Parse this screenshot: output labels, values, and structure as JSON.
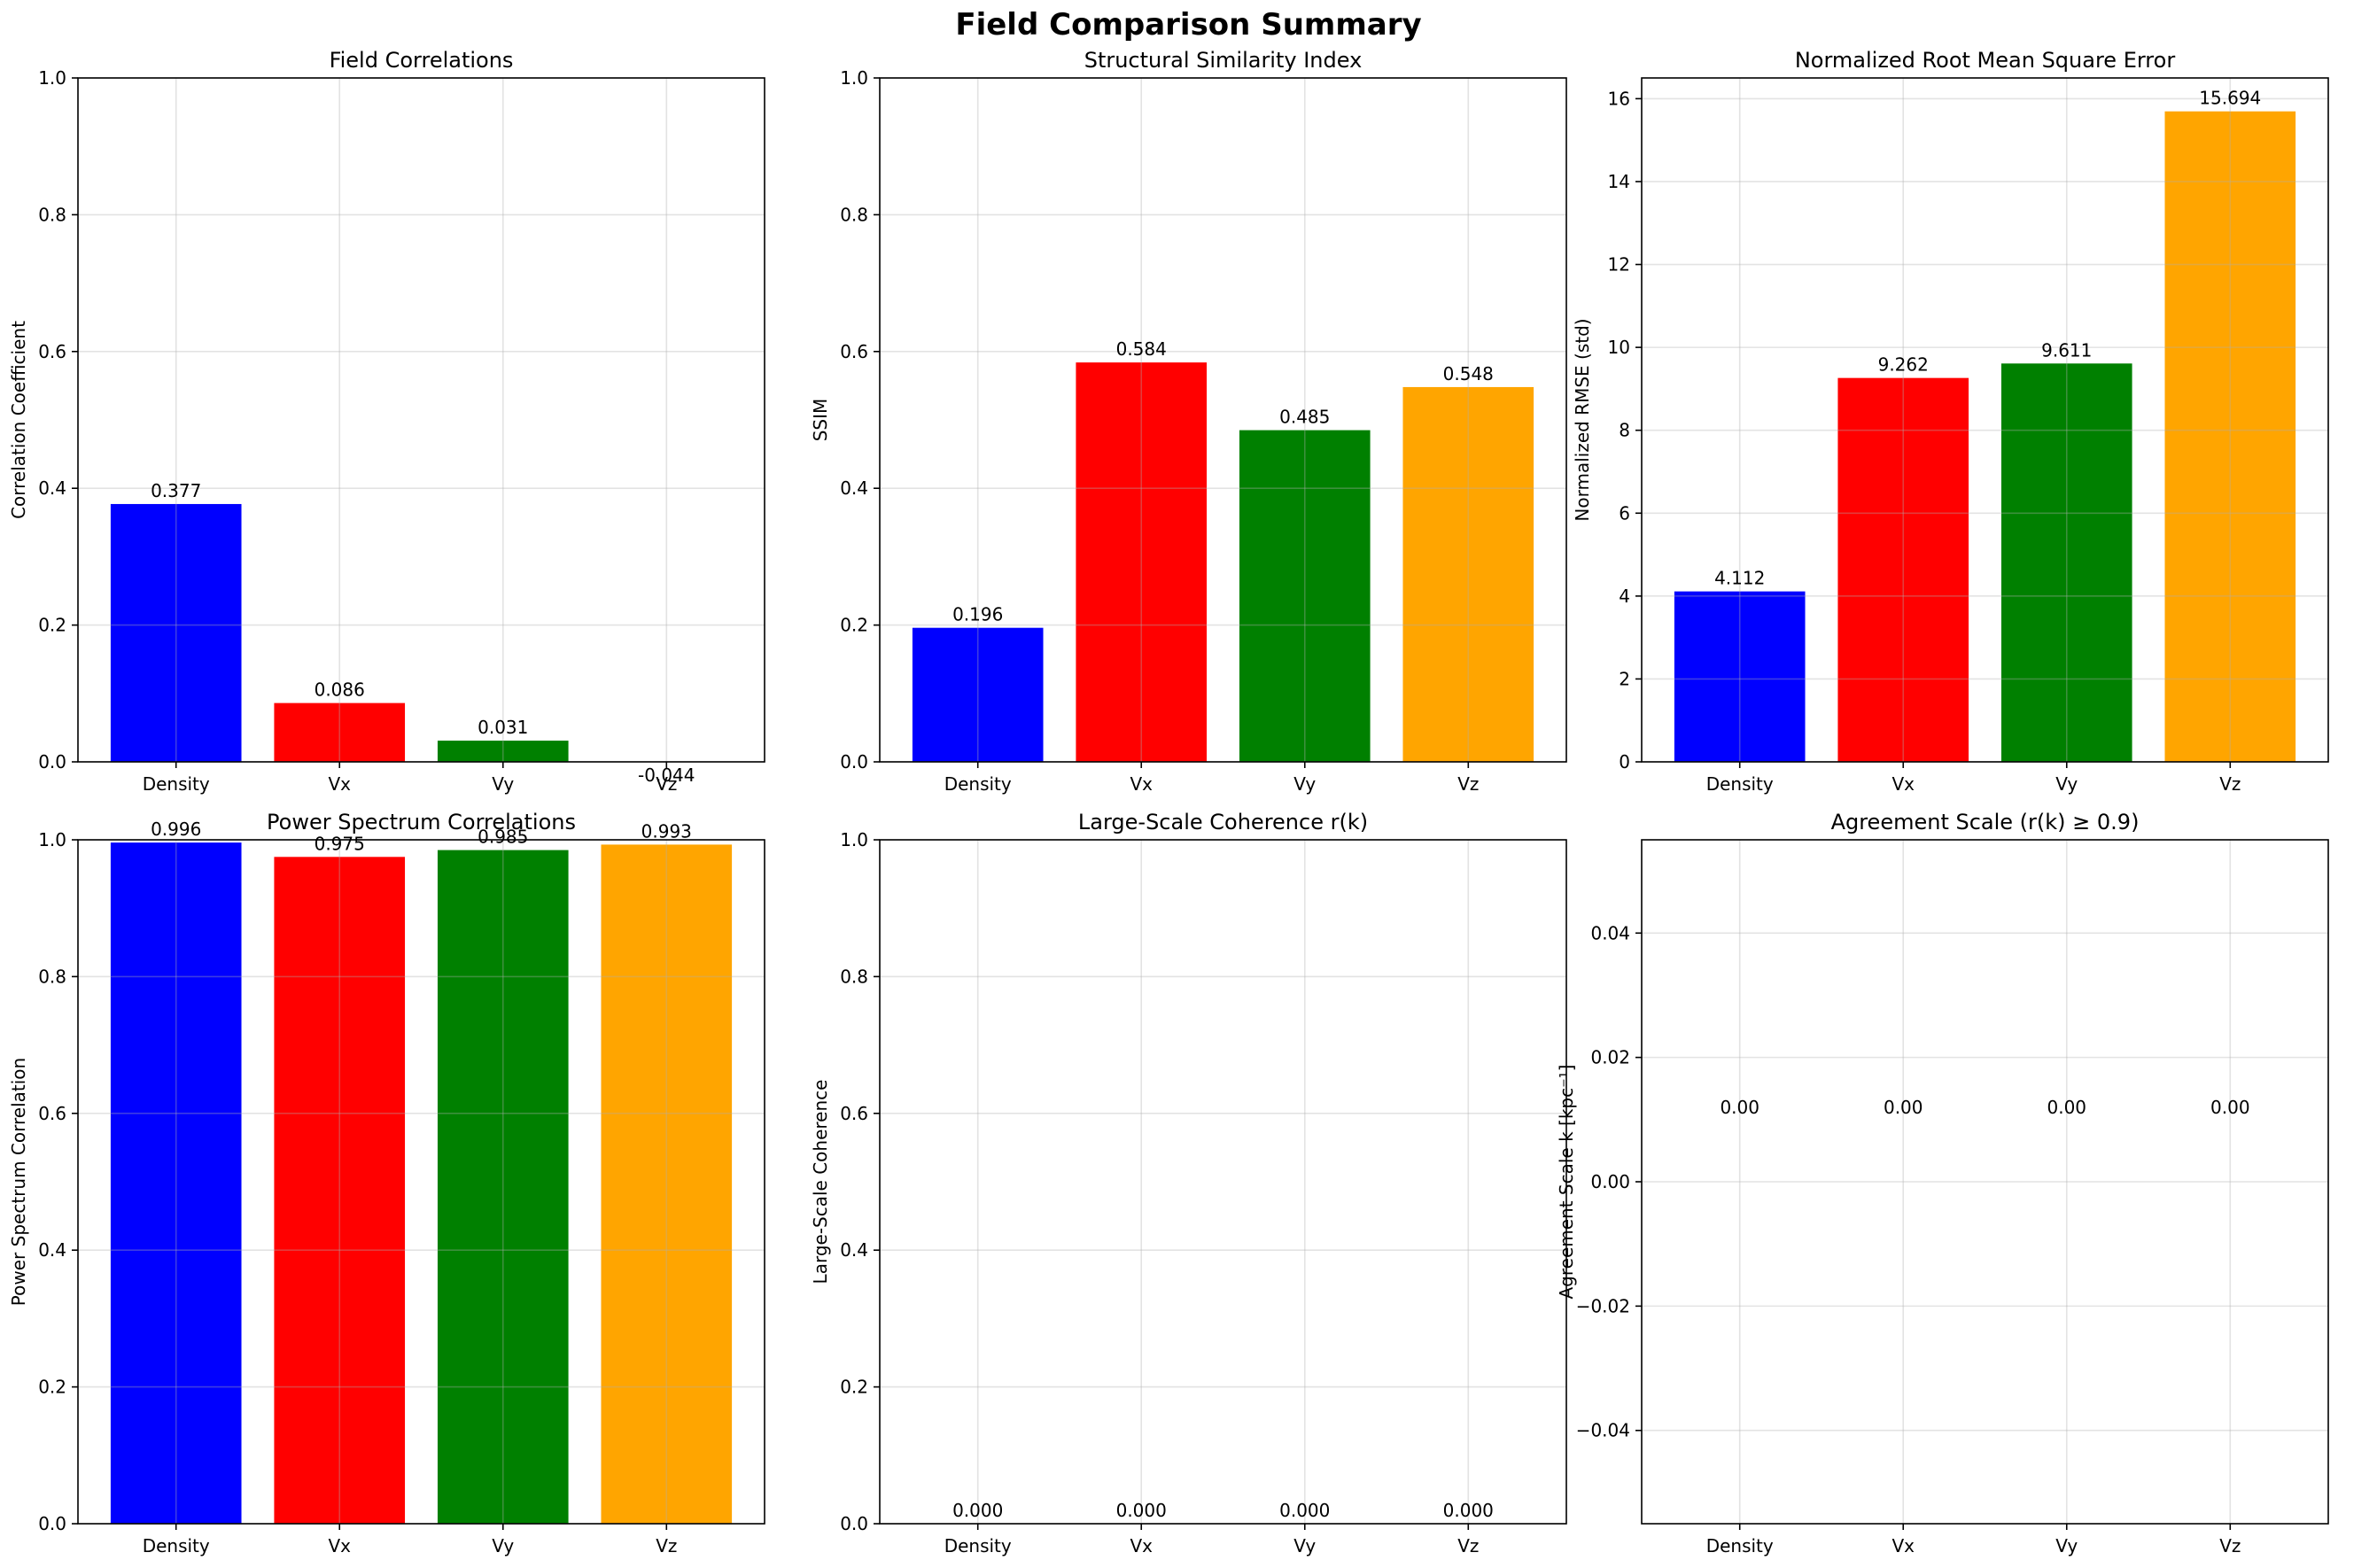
{
  "suptitle": "Field Comparison Summary",
  "colors": {
    "Density": "#0000ff",
    "Vx": "#ff0000",
    "Vy": "#008000",
    "Vz": "#ffa500"
  },
  "chart_data": [
    {
      "type": "bar",
      "title": "Field Correlations",
      "xlabel": "",
      "ylabel": "Correlation Coefficient",
      "categories": [
        "Density",
        "Vx",
        "Vy",
        "Vz"
      ],
      "values": [
        0.377,
        0.086,
        0.031,
        -0.044
      ],
      "labels": [
        "0.377",
        "0.086",
        "0.031",
        "-0.044"
      ],
      "ylim": [
        0,
        1.0
      ],
      "yticks": [
        0.0,
        0.2,
        0.4,
        0.6,
        0.8,
        1.0
      ],
      "ytick_labels": [
        "0.0",
        "0.2",
        "0.4",
        "0.6",
        "0.8",
        "1.0"
      ],
      "grid": true
    },
    {
      "type": "bar",
      "title": "Structural Similarity Index",
      "xlabel": "",
      "ylabel": "SSIM",
      "categories": [
        "Density",
        "Vx",
        "Vy",
        "Vz"
      ],
      "values": [
        0.196,
        0.584,
        0.485,
        0.548
      ],
      "labels": [
        "0.196",
        "0.584",
        "0.485",
        "0.548"
      ],
      "ylim": [
        0,
        1.0
      ],
      "yticks": [
        0.0,
        0.2,
        0.4,
        0.6,
        0.8,
        1.0
      ],
      "ytick_labels": [
        "0.0",
        "0.2",
        "0.4",
        "0.6",
        "0.8",
        "1.0"
      ],
      "grid": true
    },
    {
      "type": "bar",
      "title": "Normalized Root Mean Square Error",
      "xlabel": "",
      "ylabel": "Normalized RMSE (std)",
      "categories": [
        "Density",
        "Vx",
        "Vy",
        "Vz"
      ],
      "values": [
        4.112,
        9.262,
        9.611,
        15.694
      ],
      "labels": [
        "4.112",
        "9.262",
        "9.611",
        "15.694"
      ],
      "ylim": [
        0,
        16.5
      ],
      "yticks": [
        0,
        2,
        4,
        6,
        8,
        10,
        12,
        14,
        16
      ],
      "ytick_labels": [
        "0",
        "2",
        "4",
        "6",
        "8",
        "10",
        "12",
        "14",
        "16"
      ],
      "grid": true
    },
    {
      "type": "bar",
      "title": "Power Spectrum Correlations",
      "xlabel": "",
      "ylabel": "Power Spectrum Correlation",
      "categories": [
        "Density",
        "Vx",
        "Vy",
        "Vz"
      ],
      "values": [
        0.996,
        0.975,
        0.985,
        0.993
      ],
      "labels": [
        "0.996",
        "0.975",
        "0.985",
        "0.993"
      ],
      "ylim": [
        0,
        1.0
      ],
      "yticks": [
        0.0,
        0.2,
        0.4,
        0.6,
        0.8,
        1.0
      ],
      "ytick_labels": [
        "0.0",
        "0.2",
        "0.4",
        "0.6",
        "0.8",
        "1.0"
      ],
      "grid": true
    },
    {
      "type": "bar",
      "title": "Large-Scale Coherence r(k)",
      "xlabel": "",
      "ylabel": "Large-Scale Coherence",
      "categories": [
        "Density",
        "Vx",
        "Vy",
        "Vz"
      ],
      "values": [
        0.0,
        0.0,
        0.0,
        0.0
      ],
      "labels": [
        "0.000",
        "0.000",
        "0.000",
        "0.000"
      ],
      "ylim": [
        0,
        1.0
      ],
      "yticks": [
        0.0,
        0.2,
        0.4,
        0.6,
        0.8,
        1.0
      ],
      "ytick_labels": [
        "0.0",
        "0.2",
        "0.4",
        "0.6",
        "0.8",
        "1.0"
      ],
      "grid": true
    },
    {
      "type": "bar",
      "title": "Agreement Scale (r(k) ≥ 0.9)",
      "xlabel": "",
      "ylabel": "Agreement Scale k [kpc⁻¹]",
      "categories": [
        "Density",
        "Vx",
        "Vy",
        "Vz"
      ],
      "values": [
        0.0,
        0.0,
        0.0,
        0.0
      ],
      "labels": [
        "0.00",
        "0.00",
        "0.00",
        "0.00"
      ],
      "ylim": [
        -0.055,
        0.055
      ],
      "yticks": [
        -0.04,
        -0.02,
        0.0,
        0.02,
        0.04
      ],
      "ytick_labels": [
        "−0.04",
        "−0.02",
        "0.00",
        "0.02",
        "0.04"
      ],
      "grid": true
    }
  ]
}
